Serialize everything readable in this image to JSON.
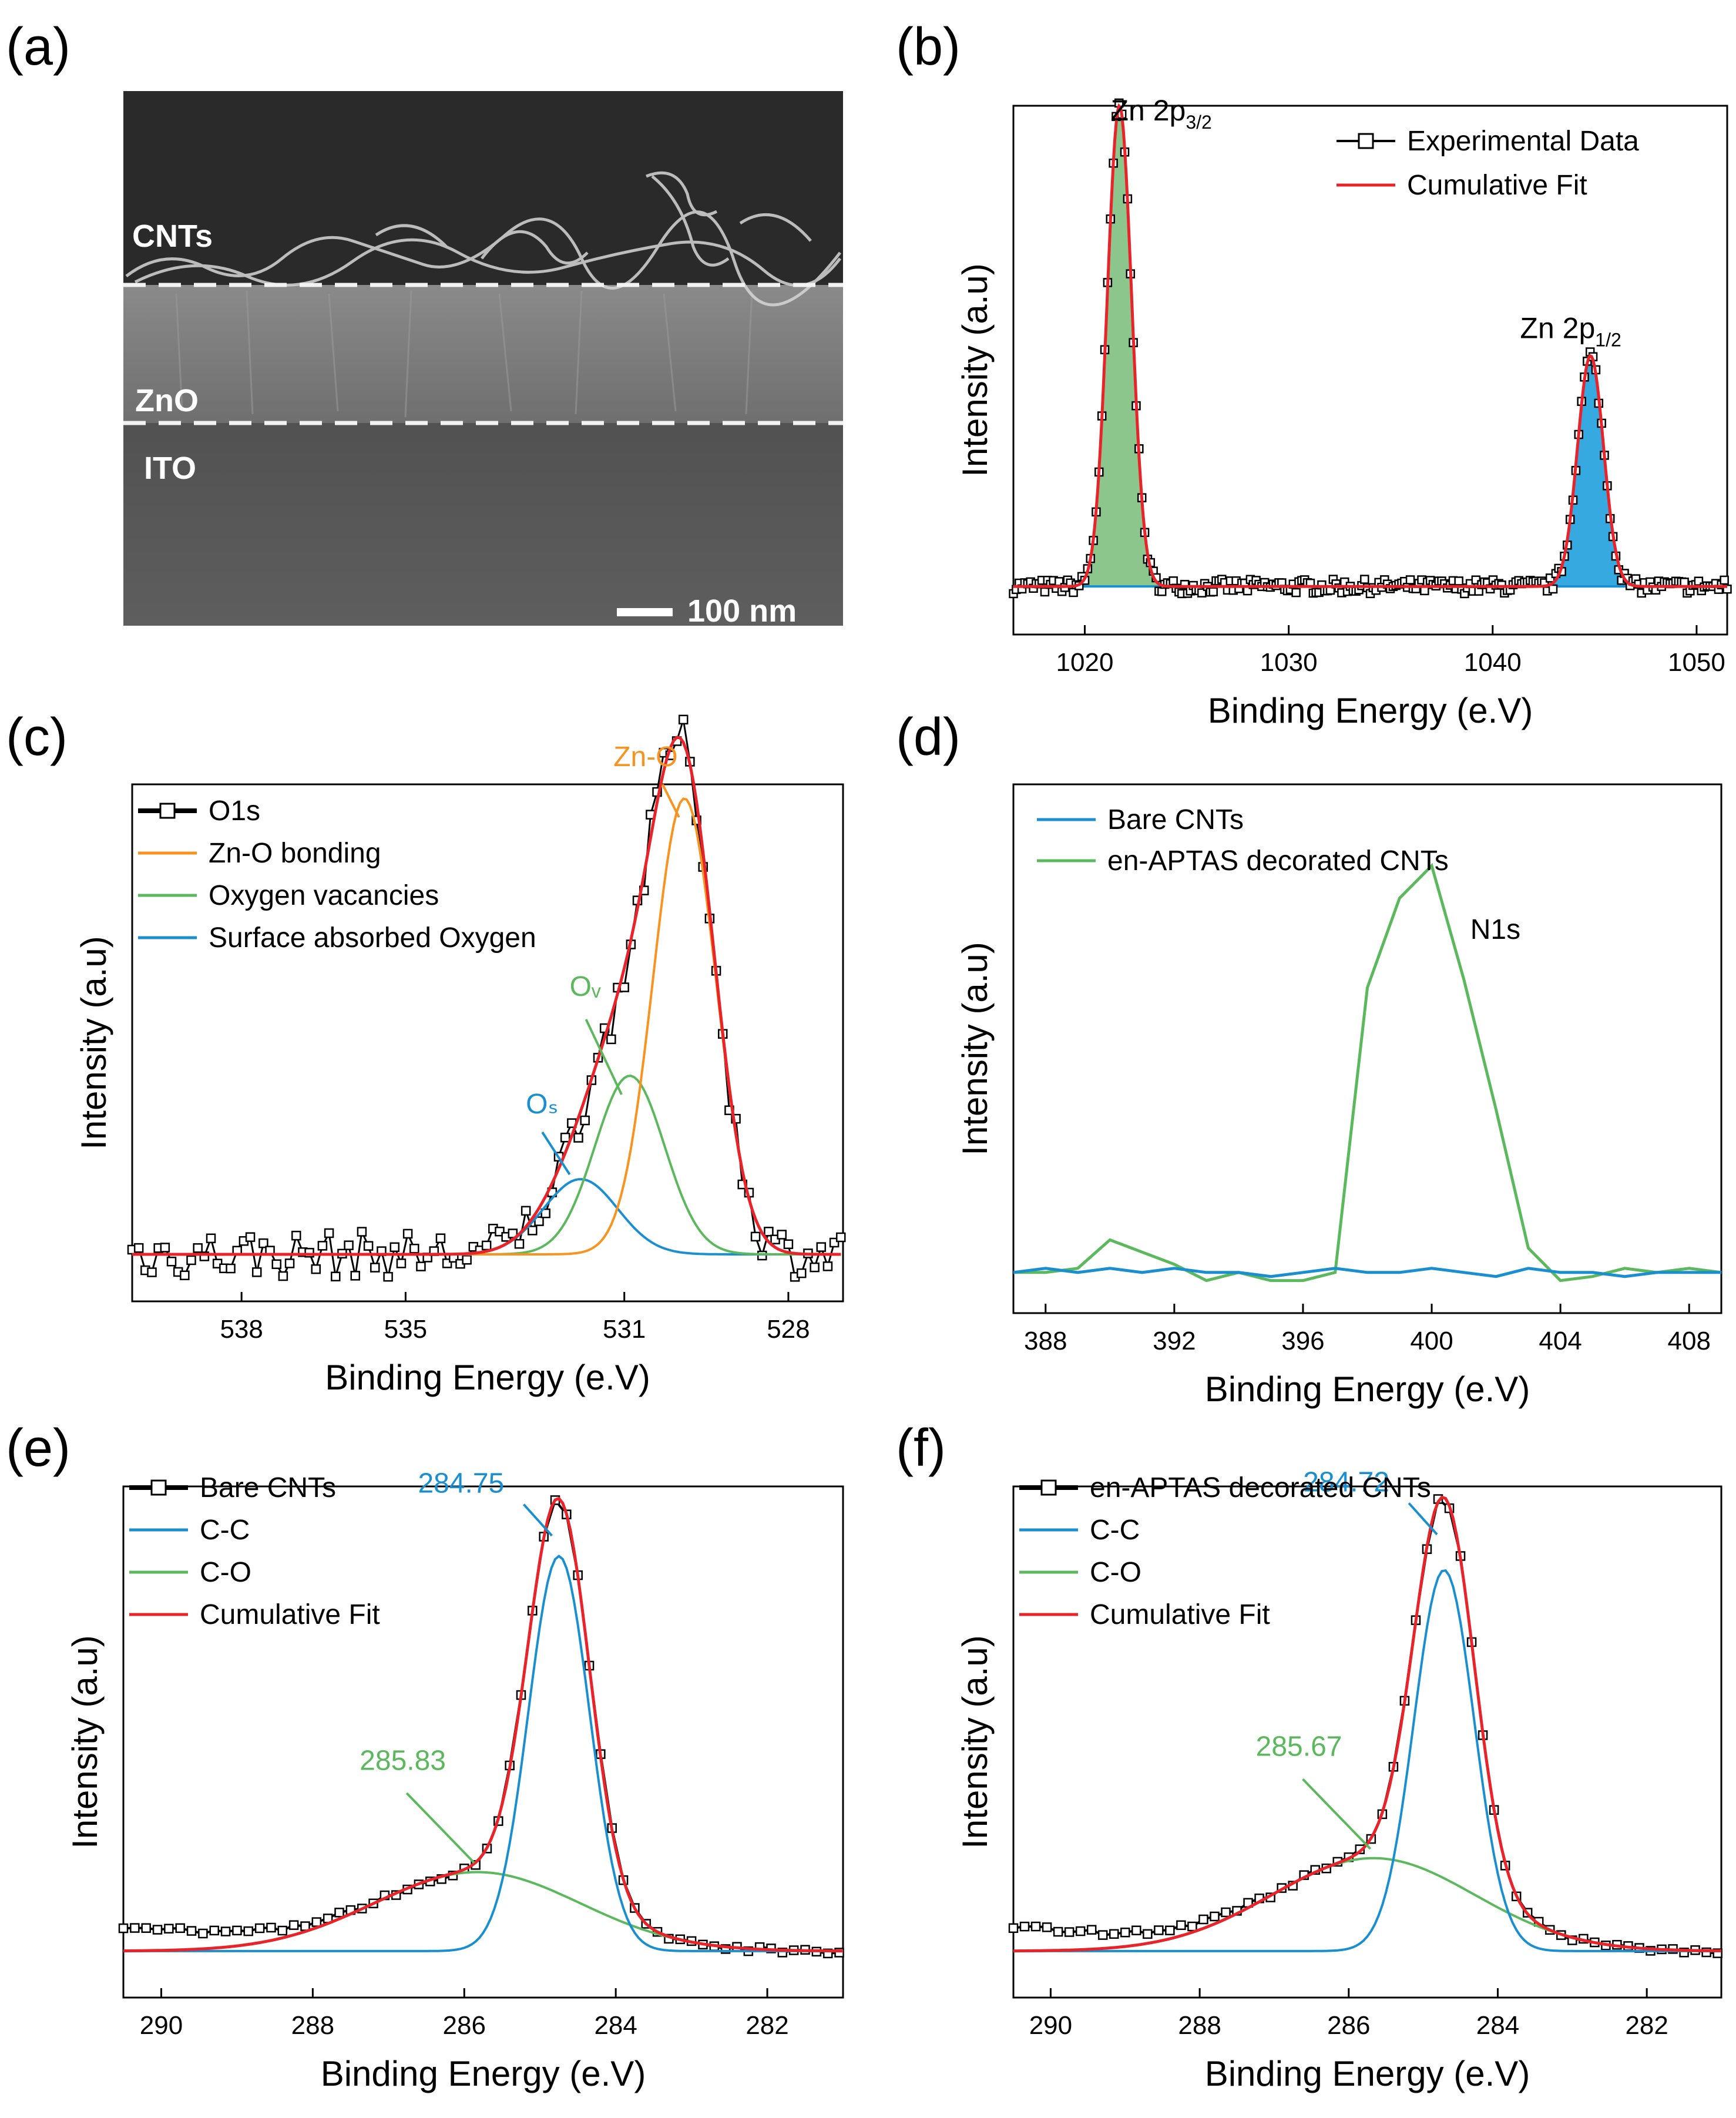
{
  "panels": {
    "a": {
      "letter": "(a)"
    },
    "b": {
      "letter": "(b)"
    },
    "c": {
      "letter": "(c)"
    },
    "d": {
      "letter": "(d)"
    },
    "e": {
      "letter": "(e)"
    },
    "f": {
      "letter": "(f)"
    }
  },
  "sem": {
    "layers": [
      "CNTs",
      "ZnO",
      "ITO"
    ],
    "scale_bar": "100 nm"
  },
  "colors": {
    "experimental": "#111111",
    "fit": "#e8232a",
    "blue": "#1a8fd0",
    "green": "#5bb85d",
    "orange": "#f7931e",
    "green_fill": "#8cc68c",
    "blue_fill": "#35a9e0"
  },
  "chart_data": [
    {
      "id": "b",
      "type": "line",
      "title": "",
      "xlabel": "Binding Energy (e.V)",
      "ylabel": "Intensity (a.u)",
      "xlim": [
        1016.5,
        1051.5
      ],
      "xticks": [
        1020,
        1030,
        1040,
        1050
      ],
      "ylim": [
        -0.1,
        1.0
      ],
      "legend": [
        "Experimental Data",
        "Cumulative Fit"
      ],
      "legend_position": "top-right",
      "peaks": [
        {
          "label": "Zn 2p",
          "sub": "3/2",
          "center": 1021.7,
          "height": 1.0,
          "fwhm": 1.4,
          "fill": "#8cc68c"
        },
        {
          "label": "Zn 2p",
          "sub": "1/2",
          "center": 1044.8,
          "height": 0.48,
          "fwhm": 1.5,
          "fill": "#35a9e0"
        }
      ]
    },
    {
      "id": "c",
      "type": "line",
      "title": "",
      "xlabel": "Binding Energy (e.V)",
      "ylabel": "Intensity (a.u)",
      "xlim": [
        540,
        527
      ],
      "xticks": [
        538,
        535,
        531,
        528
      ],
      "ylim": [
        -0.1,
        1.0
      ],
      "legend": [
        "O1s",
        "Zn-O bonding",
        "Oxygen vacancies",
        "Surface absorbed Oxygen"
      ],
      "legend_position": "top-left",
      "components": [
        {
          "name": "Zn-O bonding",
          "center": 529.9,
          "height": 0.97,
          "fwhm": 1.35,
          "label": "Zn-O"
        },
        {
          "name": "Oxygen vacancies",
          "center": 530.9,
          "height": 0.38,
          "fwhm": 1.5,
          "label": "Oᵥ"
        },
        {
          "name": "Surface absorbed Oxygen",
          "center": 531.8,
          "height": 0.16,
          "fwhm": 1.6,
          "label": "Oₛ"
        }
      ]
    },
    {
      "id": "d",
      "type": "line",
      "title": "",
      "xlabel": "Binding Energy (e.V)",
      "ylabel": "Intensity (a.u)",
      "xlim": [
        387,
        409
      ],
      "xticks": [
        388,
        392,
        396,
        400,
        404,
        408
      ],
      "ylim": [
        -0.1,
        1.2
      ],
      "legend": [
        "Bare CNTs",
        "en-APTAS decorated CNTs"
      ],
      "legend_position": "top-left",
      "annotation": "N1s",
      "series": [
        {
          "name": "Bare CNTs",
          "x": [
            387,
            388,
            389,
            390,
            391,
            392,
            393,
            394,
            395,
            396,
            397,
            398,
            399,
            400,
            401,
            402,
            403,
            404,
            405,
            406,
            407,
            408,
            409
          ],
          "y": [
            0.0,
            0.01,
            0.0,
            0.01,
            0.0,
            0.01,
            0.0,
            0.0,
            -0.01,
            0.0,
            0.01,
            0.0,
            0.0,
            0.01,
            0.0,
            -0.01,
            0.01,
            0.0,
            0.0,
            -0.01,
            0.0,
            0.0,
            0.0
          ]
        },
        {
          "name": "en-APTAS decorated CNTs",
          "x": [
            387,
            388,
            389,
            390,
            391,
            392,
            393,
            394,
            395,
            396,
            397,
            398,
            399,
            400,
            401,
            402,
            403,
            404,
            405,
            406,
            407,
            408,
            409
          ],
          "y": [
            0.0,
            0.0,
            0.01,
            0.08,
            0.05,
            0.02,
            -0.02,
            0.0,
            -0.02,
            -0.02,
            0.0,
            0.7,
            0.92,
            1.0,
            0.72,
            0.4,
            0.06,
            -0.02,
            -0.01,
            0.01,
            0.0,
            0.01,
            0.0
          ]
        }
      ]
    },
    {
      "id": "e",
      "type": "line",
      "title": "",
      "xlabel": "Binding Energy (e.V)",
      "ylabel": "Intensity (a.u)",
      "xlim": [
        290.5,
        281
      ],
      "xticks": [
        290,
        288,
        286,
        284,
        282
      ],
      "ylim": [
        -0.1,
        1.0
      ],
      "legend": [
        "Bare CNTs",
        "C-C",
        "C-O",
        "Cumulative Fit"
      ],
      "legend_position": "top-left",
      "components": [
        {
          "name": "C-C",
          "center": 284.75,
          "height": 0.85,
          "fwhm": 0.95,
          "label": "284.75"
        },
        {
          "name": "C-O",
          "center": 285.83,
          "height": 0.17,
          "fwhm": 3.2,
          "label": "285.83"
        }
      ]
    },
    {
      "id": "f",
      "type": "line",
      "title": "",
      "xlabel": "Binding Energy (e.V)",
      "ylabel": "Intensity (a.u)",
      "xlim": [
        290.5,
        281
      ],
      "xticks": [
        290,
        288,
        286,
        284,
        282
      ],
      "ylim": [
        -0.1,
        1.0
      ],
      "legend": [
        "en-APTAS decorated CNTs",
        "C-C",
        "C-O",
        "Cumulative Fit"
      ],
      "legend_position": "top-left",
      "components": [
        {
          "name": "C-C",
          "center": 284.72,
          "height": 0.82,
          "fwhm": 0.95,
          "label": "284.72"
        },
        {
          "name": "C-O",
          "center": 285.67,
          "height": 0.2,
          "fwhm": 3.2,
          "label": "285.67"
        }
      ]
    }
  ]
}
